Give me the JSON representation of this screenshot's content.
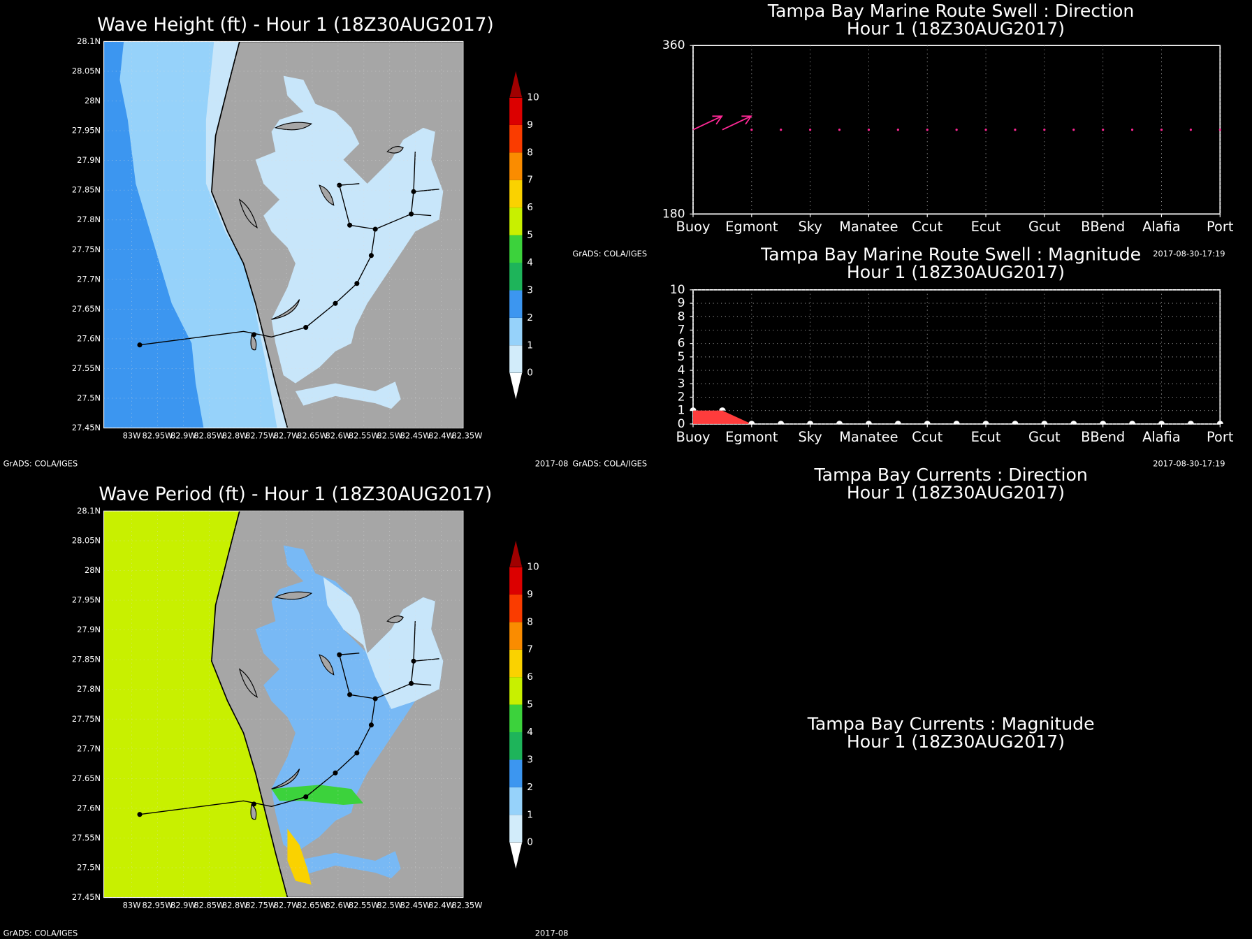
{
  "maps": [
    {
      "title": "Wave Height (ft) - Hour 1 (18Z30AUG2017)",
      "lat_labels": [
        "28.1N",
        "28.05N",
        "28N",
        "27.95N",
        "27.9N",
        "27.85N",
        "27.8N",
        "27.75N",
        "27.7N",
        "27.65N",
        "27.6N",
        "27.55N",
        "27.5N",
        "27.45N"
      ],
      "lon_labels": [
        "83W",
        "82.95W",
        "82.9W",
        "82.85W",
        "82.8W",
        "82.75W",
        "82.7W",
        "82.65W",
        "82.6W",
        "82.55W",
        "82.5W",
        "82.45W",
        "82.4W",
        "82.35W"
      ],
      "colorbar": {
        "levels": [
          0,
          1,
          2,
          3,
          4,
          5,
          6,
          7,
          8,
          9,
          10
        ],
        "colors": [
          "#ffffff",
          "#d2ecfa",
          "#96d2fa",
          "#3c96f0",
          "#1eb45a",
          "#3cd23c",
          "#c8f000",
          "#fad200",
          "#fa8c00",
          "#fa3c00",
          "#dc0000",
          "#a00000"
        ]
      },
      "credit": "GrADS: COLA/IGES",
      "date": "2017-08"
    },
    {
      "title": "Wave Period (ft) - Hour 1 (18Z30AUG2017)",
      "lat_labels": [
        "28.1N",
        "28.05N",
        "28N",
        "27.95N",
        "27.9N",
        "27.85N",
        "27.8N",
        "27.75N",
        "27.7N",
        "27.65N",
        "27.6N",
        "27.55N",
        "27.5N",
        "27.45N"
      ],
      "lon_labels": [
        "83W",
        "82.95W",
        "82.9W",
        "82.85W",
        "82.8W",
        "82.75W",
        "82.7W",
        "82.65W",
        "82.6W",
        "82.55W",
        "82.5W",
        "82.45W",
        "82.4W",
        "82.35W"
      ],
      "colorbar": {
        "levels": [
          0,
          1,
          2,
          3,
          4,
          5,
          6,
          7,
          8,
          9,
          10
        ],
        "colors": [
          "#ffffff",
          "#d2ecfa",
          "#96d2fa",
          "#3c96f0",
          "#1eb45a",
          "#3cd23c",
          "#c8f000",
          "#fad200",
          "#fa8c00",
          "#fa3c00",
          "#dc0000",
          "#a00000"
        ]
      },
      "credit": "GrADS: COLA/IGES",
      "date": "2017-08"
    }
  ],
  "chart_data": [
    {
      "type": "scatter",
      "title": "Tampa Bay Marine Route Swell : Direction",
      "subtitle": "Hour 1 (18Z30AUG2017)",
      "x": [
        1,
        1.5,
        2,
        2.5,
        3,
        3.5,
        4,
        4.5,
        5,
        5.5,
        6,
        6.5,
        7,
        7.5,
        8,
        8.5,
        9,
        9.5,
        10
      ],
      "values": [
        270,
        270,
        270,
        270,
        270,
        270,
        270,
        270,
        270,
        270,
        270,
        270,
        270,
        270,
        270,
        270,
        270,
        270,
        270
      ],
      "color": "#ff2896",
      "xlim": [
        1,
        10
      ],
      "xticks": [
        {
          "value": 1,
          "label": "Buoy"
        },
        {
          "value": 2,
          "label": "Egmont"
        },
        {
          "value": 3,
          "label": "Sky"
        },
        {
          "value": 4,
          "label": "Manatee"
        },
        {
          "value": 5,
          "label": "Ccut"
        },
        {
          "value": 6,
          "label": "Ecut"
        },
        {
          "value": 7,
          "label": "Gcut"
        },
        {
          "value": 8,
          "label": "BBend"
        },
        {
          "value": 9,
          "label": "Alafia"
        },
        {
          "value": 10,
          "label": "Port"
        }
      ],
      "ylim": [
        180,
        360
      ],
      "yticks": [
        180,
        360
      ],
      "grid": true,
      "credit": "GrADS: COLA/IGES",
      "date": "2017-08-30-17:19"
    },
    {
      "type": "area",
      "title": "Tampa Bay Marine Route Swell : Magnitude",
      "subtitle": "Hour 1 (18Z30AUG2017)",
      "x": [
        1,
        1.5,
        2,
        2.5,
        3,
        3.5,
        4,
        4.5,
        5,
        5.5,
        6,
        6.5,
        7,
        7.5,
        8,
        8.5,
        9,
        9.5,
        10
      ],
      "values": [
        1,
        1,
        0,
        0,
        0,
        0,
        0,
        0,
        0,
        0,
        0,
        0,
        0,
        0,
        0,
        0,
        0,
        0,
        0
      ],
      "color": "#ff3c3c",
      "xlim": [
        1,
        10
      ],
      "xticks": [
        {
          "value": 1,
          "label": "Buoy"
        },
        {
          "value": 2,
          "label": "Egmont"
        },
        {
          "value": 3,
          "label": "Sky"
        },
        {
          "value": 4,
          "label": "Manatee"
        },
        {
          "value": 5,
          "label": "Ccut"
        },
        {
          "value": 6,
          "label": "Ecut"
        },
        {
          "value": 7,
          "label": "Gcut"
        },
        {
          "value": 8,
          "label": "BBend"
        },
        {
          "value": 9,
          "label": "Alafia"
        },
        {
          "value": 10,
          "label": "Port"
        }
      ],
      "ylim": [
        0,
        10
      ],
      "yticks": [
        0,
        1,
        2,
        3,
        4,
        5,
        6,
        7,
        8,
        9,
        10
      ],
      "grid": true,
      "credit": "GrADS: COLA/IGES",
      "date": "2017-08-30-17:19"
    }
  ],
  "panels": [
    {
      "title": "Tampa Bay Currents : Direction",
      "subtitle": "Hour 1 (18Z30AUG2017)"
    },
    {
      "title": "Tampa Bay Currents : Magnitude",
      "subtitle": "Hour 1 (18Z30AUG2017)"
    }
  ]
}
